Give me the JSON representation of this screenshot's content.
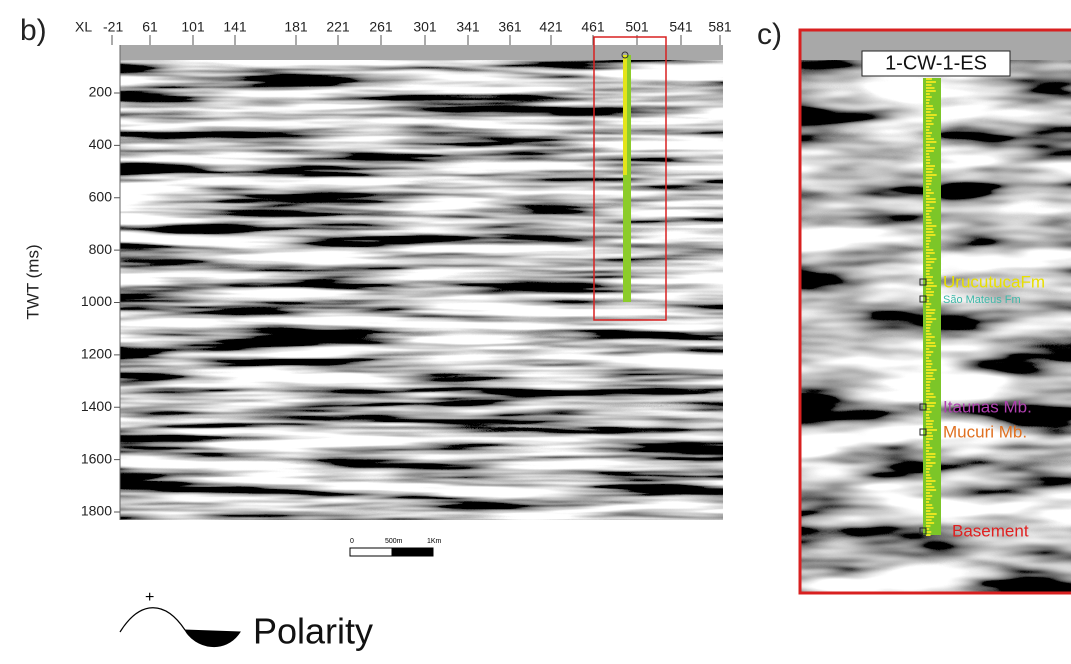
{
  "panel_b": {
    "label": "b)",
    "x_axis_prefix": "XL",
    "x_ticks": [
      "-21",
      "61",
      "101",
      "141",
      "181",
      "221",
      "261",
      "301",
      "341",
      "361",
      "421",
      "461",
      "501",
      "541",
      "581"
    ],
    "y_axis_label": "TWT (ms)",
    "y_ticks": [
      200,
      400,
      600,
      800,
      1000,
      1200,
      1400,
      1600,
      1800
    ],
    "scale_bar": [
      "0",
      "500m",
      "1Km"
    ],
    "polarity": {
      "sign": "+",
      "label": "Polarity"
    }
  },
  "panel_c": {
    "label": "c)",
    "well": "1-CW-1-ES",
    "formations": [
      {
        "name": "UrucutucaFm",
        "color": "#e8e000"
      },
      {
        "name": "São Mateus Fm",
        "color": "#3cb8a8"
      },
      {
        "name": "Itaunas Mb.",
        "color": "#b040b0"
      },
      {
        "name": "Mucuri Mb.",
        "color": "#e07020"
      },
      {
        "name": "Basement",
        "color": "#e02020"
      }
    ]
  }
}
